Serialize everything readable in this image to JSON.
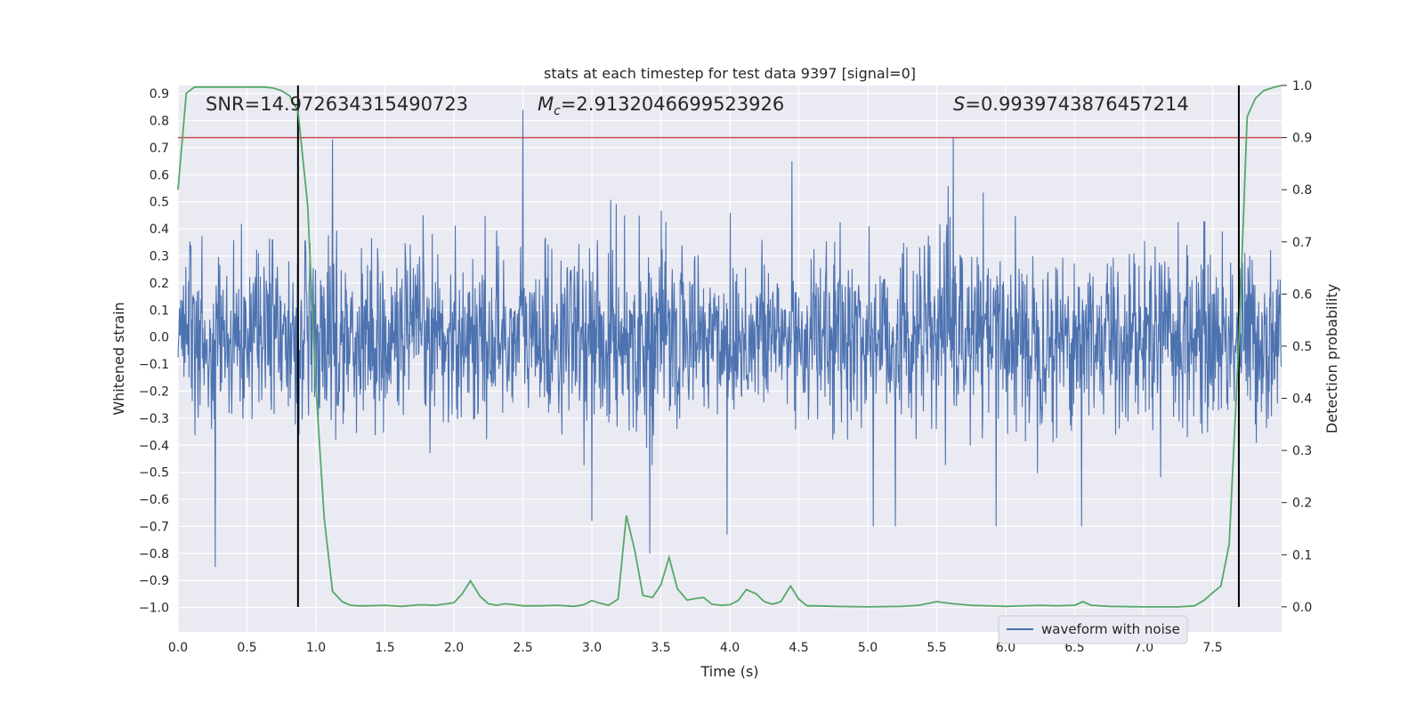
{
  "chart_data": {
    "type": "line",
    "title": "stats at each timestep for test data 9397 [signal=0]",
    "xlabel": "Time (s)",
    "ylabel": "Whitened strain",
    "ylabel_right": "Detection probability",
    "xlim": [
      0.0,
      8.0
    ],
    "ylim": [
      -1.09,
      0.93
    ],
    "ylim_right": [
      -0.048,
      1.0
    ],
    "x_ticks": [
      "0.0",
      "0.5",
      "1.0",
      "1.5",
      "2.0",
      "2.5",
      "3.0",
      "3.5",
      "4.0",
      "4.5",
      "5.0",
      "5.5",
      "6.0",
      "6.5",
      "7.0",
      "7.5"
    ],
    "y_ticks": [
      "0.9",
      "0.8",
      "0.7",
      "0.6",
      "0.5",
      "0.4",
      "0.3",
      "0.2",
      "0.1",
      "0.0",
      "−0.1",
      "−0.2",
      "−0.3",
      "−0.4",
      "−0.5",
      "−0.6",
      "−0.7",
      "−0.8",
      "−0.9",
      "−1.0"
    ],
    "y_ticks_right": [
      "1.0",
      "0.9",
      "0.8",
      "0.7",
      "0.6",
      "0.5",
      "0.4",
      "0.3",
      "0.2",
      "0.1",
      "0.0"
    ],
    "grid": true,
    "legend": {
      "label": "waveform with noise",
      "placement": "lower-right"
    },
    "annotations": {
      "snr": "SNR=14.972634315490723",
      "mc_symbol": "M",
      "mc_sub": "c",
      "mc_value": "=2.9132046699523926",
      "s_symbol": "S",
      "s_value": "=0.9939743876457214"
    },
    "threshold": {
      "axis": "right",
      "value": 0.9,
      "color": "#c44e52"
    },
    "vertical_lines": [
      0.87,
      7.69
    ],
    "series": [
      {
        "name": "waveform with noise",
        "axis": "left",
        "color": "#4c72b0",
        "envelope": {
          "typical_amplitude": 0.3,
          "peak_amplitude": 0.5
        },
        "spikes": [
          {
            "x": 0.27,
            "y": -0.85
          },
          {
            "x": 1.12,
            "y": 0.73
          },
          {
            "x": 2.5,
            "y": 0.84
          },
          {
            "x": 3.42,
            "y": -0.8
          },
          {
            "x": 3.98,
            "y": -0.73
          },
          {
            "x": 5.62,
            "y": 0.74
          },
          {
            "x": 4.45,
            "y": 0.65
          },
          {
            "x": 5.04,
            "y": -0.7
          },
          {
            "x": 5.2,
            "y": -0.7
          },
          {
            "x": 6.55,
            "y": -0.7
          },
          {
            "x": 3.0,
            "y": -0.68
          },
          {
            "x": 5.93,
            "y": -0.7
          }
        ]
      },
      {
        "name": "detection probability",
        "axis": "right",
        "color": "#55a868",
        "x": [
          0.0,
          0.06,
          0.12,
          0.18,
          0.25,
          0.31,
          0.37,
          0.44,
          0.5,
          0.56,
          0.62,
          0.69,
          0.75,
          0.81,
          0.87,
          0.94,
          1.0,
          1.06,
          1.12,
          1.19,
          1.25,
          1.31,
          1.37,
          1.5,
          1.62,
          1.75,
          1.87,
          2.0,
          2.06,
          2.12,
          2.19,
          2.25,
          2.31,
          2.37,
          2.44,
          2.5,
          2.62,
          2.75,
          2.87,
          2.94,
          3.0,
          3.06,
          3.12,
          3.19,
          3.25,
          3.31,
          3.37,
          3.44,
          3.5,
          3.56,
          3.62,
          3.69,
          3.75,
          3.81,
          3.87,
          3.94,
          4.0,
          4.06,
          4.12,
          4.19,
          4.25,
          4.31,
          4.37,
          4.44,
          4.5,
          4.56,
          4.62,
          4.75,
          5.0,
          5.25,
          5.37,
          5.5,
          5.62,
          5.75,
          6.0,
          6.25,
          6.37,
          6.5,
          6.56,
          6.62,
          6.75,
          7.0,
          7.25,
          7.37,
          7.44,
          7.5,
          7.56,
          7.62,
          7.69,
          7.75,
          7.81,
          7.87,
          7.94,
          8.0
        ],
        "y": [
          0.8,
          0.985,
          0.997,
          0.997,
          0.997,
          0.997,
          0.997,
          0.997,
          0.997,
          0.997,
          0.997,
          0.995,
          0.99,
          0.98,
          0.95,
          0.77,
          0.42,
          0.17,
          0.03,
          0.01,
          0.003,
          0.002,
          0.002,
          0.003,
          0.001,
          0.004,
          0.003,
          0.008,
          0.025,
          0.05,
          0.02,
          0.006,
          0.003,
          0.006,
          0.004,
          0.002,
          0.002,
          0.003,
          0.001,
          0.004,
          0.012,
          0.007,
          0.003,
          0.015,
          0.175,
          0.11,
          0.022,
          0.018,
          0.042,
          0.095,
          0.035,
          0.013,
          0.016,
          0.018,
          0.005,
          0.003,
          0.004,
          0.012,
          0.033,
          0.025,
          0.01,
          0.005,
          0.01,
          0.04,
          0.015,
          0.002,
          0.002,
          0.001,
          0.0,
          0.001,
          0.003,
          0.01,
          0.006,
          0.003,
          0.001,
          0.003,
          0.002,
          0.003,
          0.01,
          0.003,
          0.001,
          0.0,
          0.0,
          0.002,
          0.013,
          0.027,
          0.04,
          0.12,
          0.51,
          0.94,
          0.975,
          0.99,
          0.996,
          1.0
        ]
      }
    ]
  }
}
